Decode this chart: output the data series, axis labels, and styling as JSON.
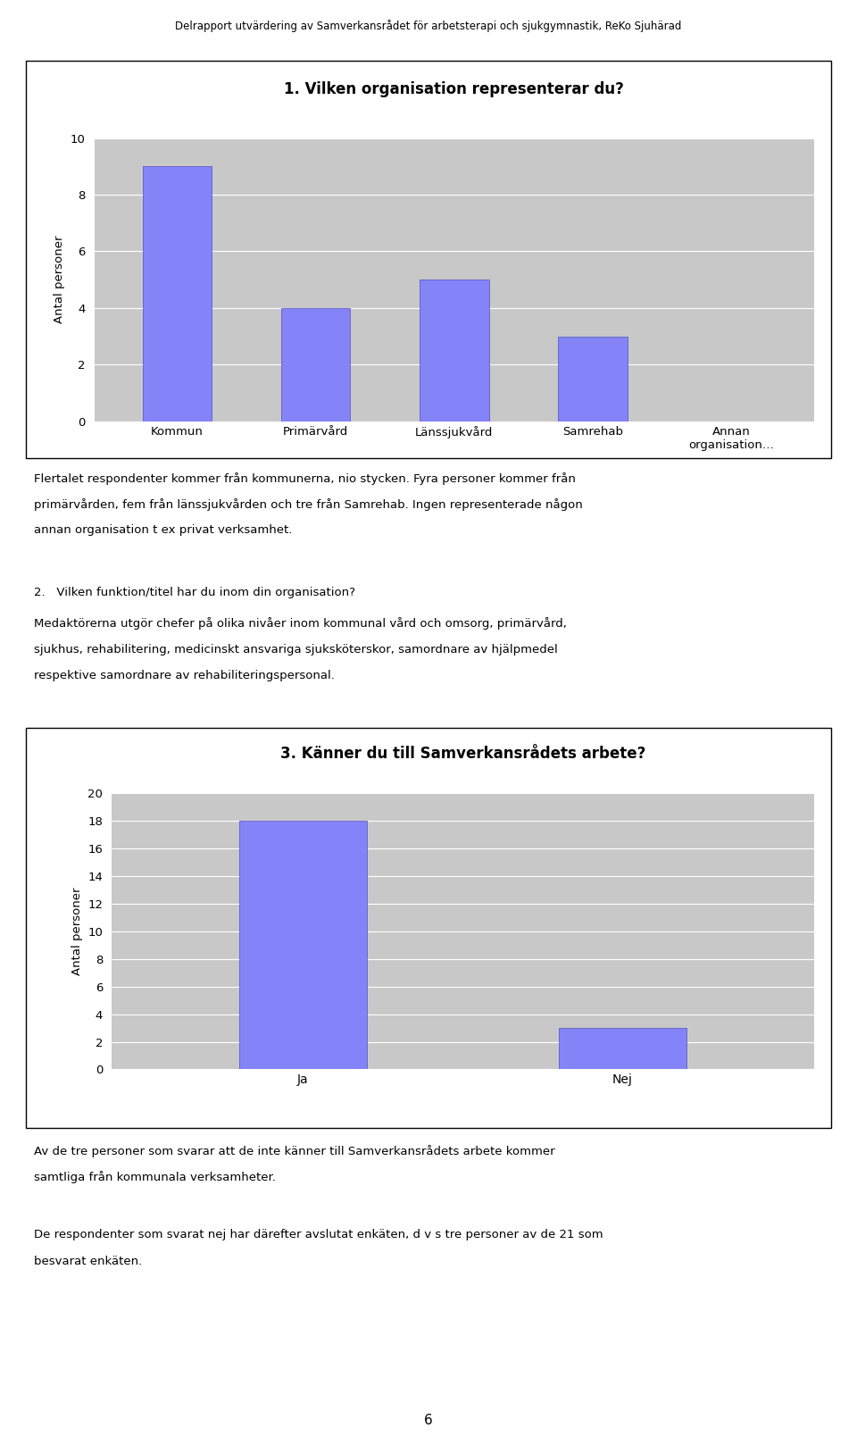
{
  "header_text": "Delrapport utvärdering av Samverkansrådet för arbetsterapi och sjukgymnastik, ReKo Sjuhärad",
  "chart1_title": "1. Vilken organisation representerar du?",
  "chart1_categories": [
    "Kommun",
    "Primärvård",
    "Länssjukvård",
    "Samrehab",
    "Annan\norganisation…"
  ],
  "chart1_values": [
    9,
    4,
    5,
    3,
    0
  ],
  "chart1_ylim": [
    0,
    10
  ],
  "chart1_yticks": [
    0,
    2,
    4,
    6,
    8,
    10
  ],
  "chart1_ylabel": "Antal personer",
  "bar_color": "#8484f8",
  "bar_edge_color": "#5050c0",
  "plot_bg": "#c8c8c8",
  "text1_line1": "Flertalet respondenter kommer från kommunerna, nio stycken. Fyra personer kommer från",
  "text1_line2": "primärvården, fem från länssjukvården och tre från Samrehab. Ingen representerade någon",
  "text1_line3": "annan organisation t ex privat verksamhet.",
  "text2_heading": "2.   Vilken funktion/titel har du inom din organisation?",
  "text2_line1": "Medaktörerna utgör chefer på olika nivåer inom kommunal vård och omsorg, primärvård,",
  "text2_line2": "sjukhus, rehabilitering, medicinskt ansvariga sjuksköterskor, samordnare av hjälpmedel",
  "text2_line3": "respektive samordnare av rehabiliteringspersonal.",
  "chart2_title": "3. Känner du till Samverkansrådets arbete?",
  "chart2_categories": [
    "Ja",
    "Nej"
  ],
  "chart2_values": [
    18,
    3
  ],
  "chart2_ylim": [
    0,
    20
  ],
  "chart2_yticks": [
    0,
    2,
    4,
    6,
    8,
    10,
    12,
    14,
    16,
    18,
    20
  ],
  "chart2_ylabel": "Antal personer",
  "text3_line1": "Av de tre personer som svarar att de inte känner till Samverkansrådets arbete kommer",
  "text3_line2": "samtliga från kommunala verksamheter.",
  "text4_line1": "De respondenter som svarat nej har därefter avslutat enkäten, d v s tre personer av de 21 som",
  "text4_line2": "besvarat enkäten.",
  "footer": "6",
  "fig_width": 9.6,
  "fig_height": 16.27,
  "dpi": 100
}
